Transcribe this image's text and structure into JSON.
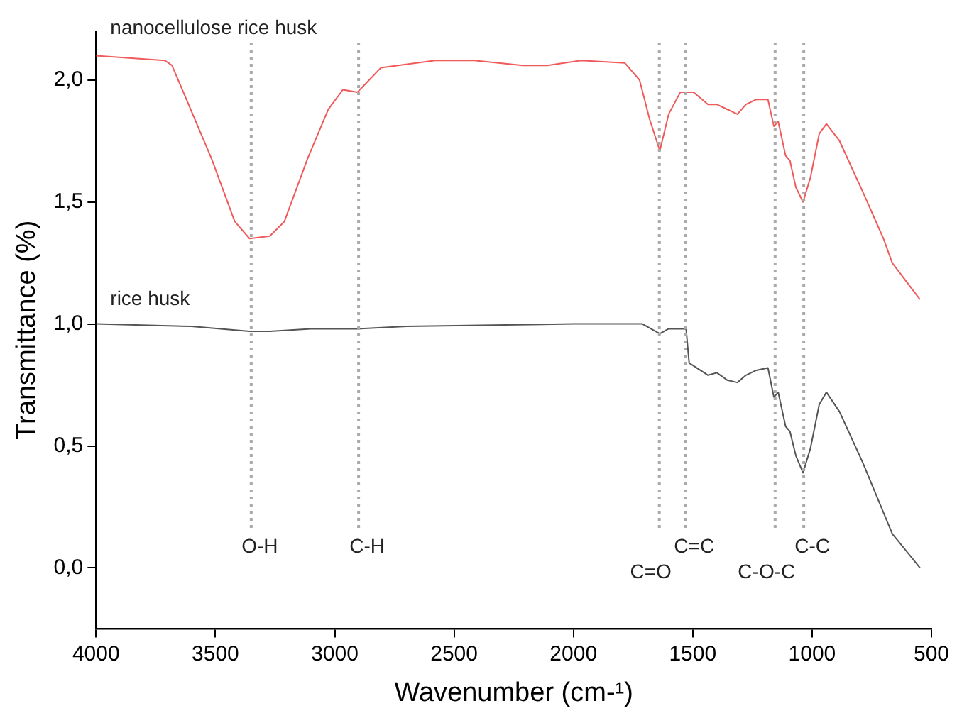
{
  "chart_data": {
    "type": "line",
    "xlabel": "Wavenumber (cm-¹)",
    "ylabel": "Transmittance (%)",
    "xlim": [
      4000,
      500
    ],
    "xticks": [
      4000,
      3500,
      3000,
      2500,
      2000,
      1500,
      1000,
      500
    ],
    "ylim": [
      -0.25,
      2.2
    ],
    "yticks": [
      {
        "value": 0,
        "label": "0,0"
      },
      {
        "value": 0.5,
        "label": "0,5"
      },
      {
        "value": 1,
        "label": "1,0"
      },
      {
        "value": 1.5,
        "label": "1,5"
      },
      {
        "value": 2,
        "label": "2,0"
      }
    ],
    "grid": false,
    "legend": false,
    "marker": "none",
    "line_style": "solid",
    "series": [
      {
        "name": "nanocellulose rice husk",
        "color": "#f05a5a",
        "x": [
          4000,
          3712,
          3682,
          3517,
          3419,
          3357,
          3272,
          3211,
          3113,
          3027,
          2966,
          2905,
          2807,
          2580,
          2415,
          2213,
          2109,
          1968,
          1785,
          1723,
          1681,
          1638,
          1601,
          1552,
          1497,
          1436,
          1399,
          1356,
          1313,
          1277,
          1234,
          1185,
          1160,
          1142,
          1111,
          1093,
          1068,
          1038,
          1007,
          970,
          940,
          885,
          787,
          701,
          664,
          548
        ],
        "values": [
          2.1,
          2.08,
          2.06,
          1.68,
          1.42,
          1.35,
          1.36,
          1.42,
          1.68,
          1.88,
          1.96,
          1.95,
          2.05,
          2.08,
          2.08,
          2.06,
          2.06,
          2.08,
          2.07,
          2.0,
          1.84,
          1.71,
          1.86,
          1.95,
          1.95,
          1.9,
          1.9,
          1.88,
          1.86,
          1.9,
          1.92,
          1.92,
          1.81,
          1.83,
          1.69,
          1.67,
          1.56,
          1.5,
          1.6,
          1.78,
          1.82,
          1.75,
          1.54,
          1.35,
          1.25,
          1.1
        ]
      },
      {
        "name": "rice husk",
        "color": "#555555",
        "x": [
          4000,
          3600,
          3357,
          3272,
          3100,
          2905,
          2700,
          2000,
          1711,
          1638,
          1601,
          1528,
          1515,
          1436,
          1399,
          1356,
          1313,
          1277,
          1234,
          1185,
          1160,
          1142,
          1111,
          1093,
          1068,
          1038,
          1007,
          970,
          940,
          885,
          787,
          664,
          548
        ],
        "values": [
          1.0,
          0.99,
          0.97,
          0.97,
          0.98,
          0.98,
          0.99,
          1.0,
          1.0,
          0.96,
          0.98,
          0.98,
          0.84,
          0.79,
          0.8,
          0.77,
          0.76,
          0.79,
          0.81,
          0.82,
          0.7,
          0.72,
          0.58,
          0.56,
          0.46,
          0.39,
          0.49,
          0.67,
          0.72,
          0.64,
          0.43,
          0.14,
          0.0
        ]
      }
    ],
    "ref_lines": [
      {
        "axis": "x",
        "value": 3350,
        "label": "O-H",
        "color": "#aaaaaa",
        "line_style": "dotted"
      },
      {
        "axis": "x",
        "value": 2900,
        "label": "C-H",
        "color": "#aaaaaa",
        "line_style": "dotted"
      },
      {
        "axis": "x",
        "value": 1640,
        "label": "C=O",
        "color": "#aaaaaa",
        "line_style": "dotted"
      },
      {
        "axis": "x",
        "value": 1530,
        "label": "C=C",
        "color": "#aaaaaa",
        "line_style": "dotted"
      },
      {
        "axis": "x",
        "value": 1155,
        "label": "C-O-C",
        "color": "#aaaaaa",
        "line_style": "dotted"
      },
      {
        "axis": "x",
        "value": 1035,
        "label": "C-C",
        "color": "#aaaaaa",
        "line_style": "dotted"
      }
    ]
  }
}
